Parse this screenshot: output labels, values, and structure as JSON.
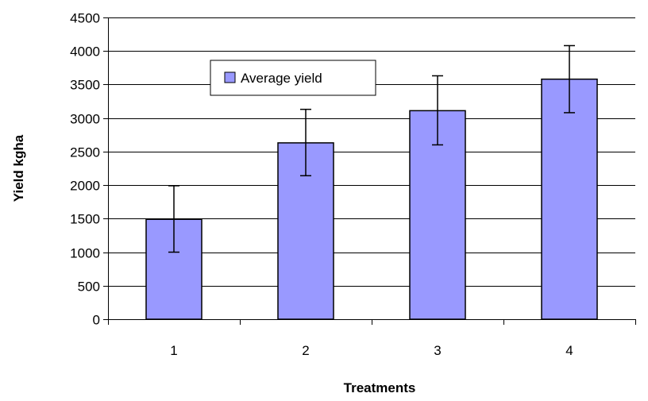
{
  "chart_data": {
    "type": "bar",
    "title": "",
    "xlabel": "Treatments",
    "ylabel": "Yield kgha",
    "categories": [
      "1",
      "2",
      "3",
      "4"
    ],
    "series": [
      {
        "name": "Average yield",
        "values": [
          1490,
          2630,
          3110,
          3580
        ],
        "error_low": [
          1000,
          2140,
          2600,
          3080
        ],
        "error_high": [
          1990,
          3130,
          3630,
          4080
        ]
      }
    ],
    "ylim": [
      0,
      4500
    ],
    "yticks": [
      0,
      500,
      1000,
      1500,
      2000,
      2500,
      3000,
      3500,
      4000,
      4500
    ],
    "grid": true,
    "legend_position": "top-left",
    "colors": {
      "bar_fill": "#9999ff",
      "bar_stroke": "#000000",
      "grid": "#000000",
      "axis": "#000000"
    }
  }
}
